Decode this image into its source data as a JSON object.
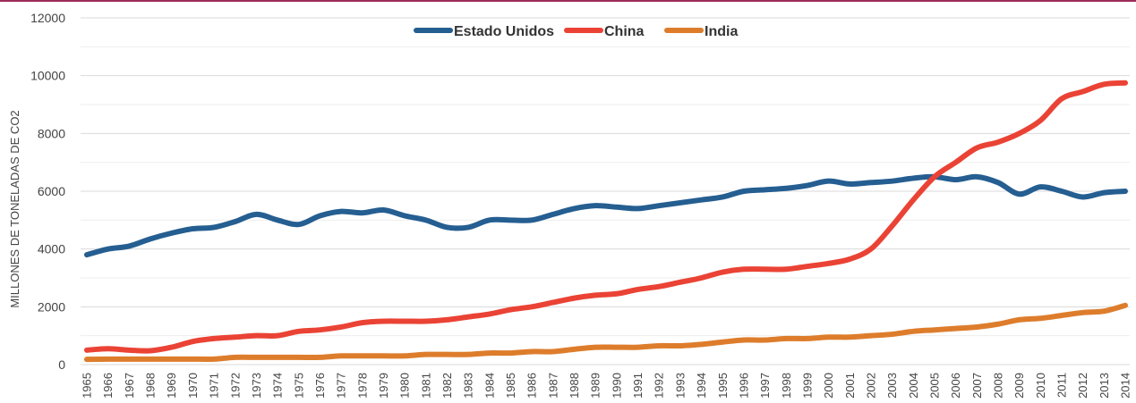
{
  "chart_data": {
    "type": "line",
    "ylabel": "MILLONES DE TONELADAS DE CO2",
    "ylim": [
      0,
      12000
    ],
    "yticks": [
      0,
      2000,
      4000,
      6000,
      8000,
      10000,
      12000
    ],
    "grid": true,
    "legend_position": "top-center",
    "x": [
      "1965",
      "1966",
      "1967",
      "1968",
      "1969",
      "1970",
      "1971",
      "1972",
      "1973",
      "1974",
      "1975",
      "1976",
      "1977",
      "1978",
      "1979",
      "1980",
      "1981",
      "1982",
      "1983",
      "1984",
      "1985",
      "1986",
      "1987",
      "1988",
      "1989",
      "1990",
      "1991",
      "1992",
      "1993",
      "1994",
      "1995",
      "1996",
      "1997",
      "1998",
      "1999",
      "2000",
      "2001",
      "2002",
      "2003",
      "2004",
      "2005",
      "2006",
      "2007",
      "2008",
      "2009",
      "2010",
      "2011",
      "2012",
      "2013",
      "2014"
    ],
    "series": [
      {
        "name": "Estado Unidos",
        "color": "#255e91",
        "values": [
          3800,
          4000,
          4100,
          4350,
          4550,
          4700,
          4750,
          4950,
          5200,
          5000,
          4850,
          5150,
          5300,
          5250,
          5350,
          5150,
          5000,
          4750,
          4750,
          5000,
          5000,
          5000,
          5200,
          5400,
          5500,
          5450,
          5400,
          5500,
          5600,
          5700,
          5800,
          6000,
          6050,
          6100,
          6200,
          6350,
          6250,
          6300,
          6350,
          6450,
          6500,
          6400,
          6500,
          6300,
          5900,
          6150,
          6000,
          5800,
          5950,
          6000
        ]
      },
      {
        "name": "China",
        "color": "#ea4335",
        "values": [
          500,
          550,
          500,
          480,
          600,
          800,
          900,
          950,
          1000,
          1000,
          1150,
          1200,
          1300,
          1450,
          1500,
          1500,
          1500,
          1550,
          1650,
          1750,
          1900,
          2000,
          2150,
          2300,
          2400,
          2450,
          2600,
          2700,
          2850,
          3000,
          3200,
          3300,
          3300,
          3300,
          3400,
          3500,
          3650,
          4000,
          4800,
          5700,
          6500,
          7000,
          7500,
          7700,
          8000,
          8450,
          9200,
          9450,
          9700,
          9750
        ]
      },
      {
        "name": "India",
        "color": "#dd7d2c",
        "values": [
          180,
          190,
          190,
          190,
          190,
          190,
          190,
          250,
          250,
          250,
          250,
          250,
          300,
          300,
          300,
          300,
          350,
          350,
          350,
          400,
          400,
          450,
          450,
          530,
          600,
          600,
          600,
          650,
          650,
          700,
          780,
          850,
          850,
          900,
          900,
          950,
          950,
          1000,
          1050,
          1150,
          1200,
          1250,
          1300,
          1400,
          1550,
          1600,
          1700,
          1800,
          1850,
          2050
        ]
      }
    ]
  }
}
